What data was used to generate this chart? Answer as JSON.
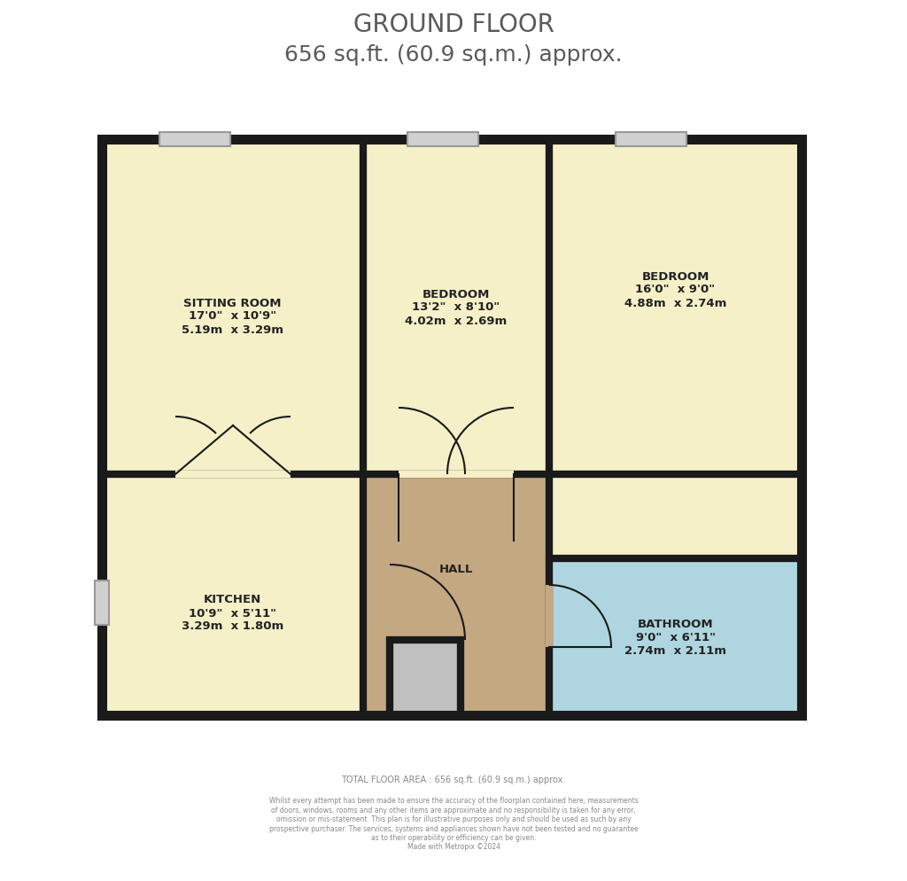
{
  "title_line1": "GROUND FLOOR",
  "title_line2": "656 sq.ft. (60.9 sq.m.) approx.",
  "title_color": "#5a5a5a",
  "bg_color": "#ffffff",
  "wall_color": "#1a1a1a",
  "floor_color": "#f5f0c8",
  "hall_color": "#c4a882",
  "bathroom_color": "#afd6e0",
  "footer_line1": "TOTAL FLOOR AREA : 656 sq.ft. (60.9 sq.m.) approx.",
  "footer_line2": "Whilst every attempt has been made to ensure the accuracy of the floorplan contained here, measurements\nof doors, windows, rooms and any other items are approximate and no responsibility is taken for any error,\nomission or mis-statement. This plan is for illustrative purposes only and should be used as such by any\nprospective purchaser. The services, systems and appliances shown have not been tested and no guarantee\nas to their operability or efficiency can be given.\nMade with Metropix ©2024",
  "footer_color": "#888888"
}
